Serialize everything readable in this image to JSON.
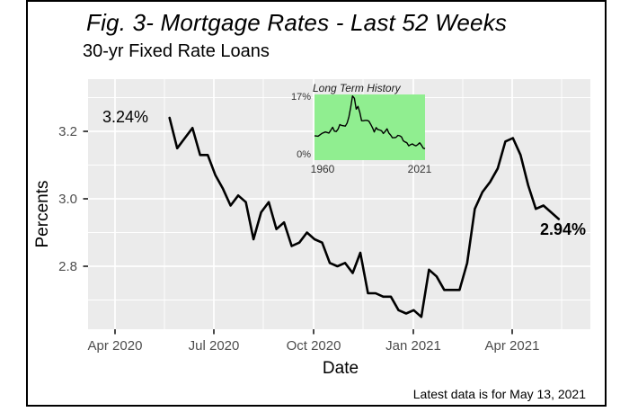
{
  "colors": {
    "panel_background": "#EBEBEB",
    "gridline": "#FFFFFF",
    "line": "#000000",
    "inset_background": "#90EE90",
    "tick_label": "#4D4D4D",
    "frame_border": "#000000"
  },
  "chart_data": [
    {
      "type": "line",
      "name": "mortgage-rates-last-52-weeks",
      "title": "Fig. 3- Mortgage Rates - Last 52 Weeks",
      "subtitle": "30-yr Fixed Rate Loans",
      "xlabel": "Date",
      "ylabel": "Percents",
      "caption": "Latest data is for May 13, 2021",
      "x_description": "52 weekly observations ending May 13, 2021",
      "x_range": [
        "2020-05-21",
        "2021-05-13"
      ],
      "x_tick_labels": [
        "Apr 2020",
        "Jul 2020",
        "Oct 2020",
        "Jan 2021",
        "Apr 2021"
      ],
      "y_ticks": [
        3.2,
        3.0,
        2.8
      ],
      "y_tick_labels": [
        "3.2",
        "3.0",
        "2.8"
      ],
      "ylim": [
        2.61,
        3.36
      ],
      "grid": true,
      "legend": false,
      "values": [
        3.24,
        3.15,
        3.18,
        3.21,
        3.13,
        3.13,
        3.07,
        3.03,
        2.98,
        3.01,
        2.99,
        2.88,
        2.96,
        2.99,
        2.91,
        2.93,
        2.86,
        2.87,
        2.9,
        2.88,
        2.87,
        2.81,
        2.8,
        2.81,
        2.78,
        2.84,
        2.72,
        2.72,
        2.71,
        2.71,
        2.67,
        2.66,
        2.67,
        2.65,
        2.79,
        2.77,
        2.73,
        2.73,
        2.73,
        2.81,
        2.97,
        3.02,
        3.05,
        3.09,
        3.17,
        3.18,
        3.13,
        3.04,
        2.97,
        2.98,
        2.96,
        2.94
      ],
      "annotations": [
        {
          "text": "3.24%",
          "position": "first-point",
          "bold": false
        },
        {
          "text": "2.94%",
          "position": "last-point",
          "bold": true
        }
      ]
    },
    {
      "type": "line",
      "name": "long-term-history-inset",
      "title": "Long Term History",
      "x_tick_labels": [
        "1960",
        "2021"
      ],
      "y_tick_labels": [
        "17%",
        "0%"
      ],
      "xlim": [
        1960,
        2021
      ],
      "ylim": [
        0,
        17
      ],
      "grid": false,
      "legend": false,
      "x": [
        1960,
        1962,
        1964,
        1966,
        1968,
        1970,
        1971,
        1972,
        1973,
        1974,
        1975,
        1976,
        1977,
        1978,
        1979,
        1980,
        1981,
        1982,
        1983,
        1984,
        1985,
        1986,
        1987,
        1988,
        1989,
        1990,
        1991,
        1992,
        1993,
        1994,
        1995,
        1996,
        1997,
        1998,
        1999,
        2000,
        2001,
        2002,
        2003,
        2004,
        2005,
        2006,
        2007,
        2008,
        2009,
        2010,
        2011,
        2012,
        2013,
        2014,
        2015,
        2016,
        2017,
        2018,
        2019,
        2020,
        2021
      ],
      "values": [
        6.3,
        6.2,
        6.9,
        7.3,
        7.0,
        8.5,
        7.5,
        7.4,
        8.0,
        9.2,
        9.0,
        8.9,
        8.8,
        9.6,
        11.2,
        13.7,
        16.6,
        16.0,
        13.2,
        13.9,
        12.4,
        10.2,
        10.2,
        10.3,
        10.3,
        10.1,
        9.3,
        8.4,
        7.3,
        8.4,
        7.9,
        7.8,
        7.6,
        6.9,
        7.4,
        8.1,
        7.0,
        6.5,
        5.8,
        5.8,
        5.9,
        6.4,
        6.3,
        6.0,
        5.0,
        4.7,
        4.5,
        3.7,
        4.0,
        4.2,
        3.9,
        3.7,
        4.0,
        4.5,
        3.9,
        3.1,
        2.96
      ]
    }
  ]
}
